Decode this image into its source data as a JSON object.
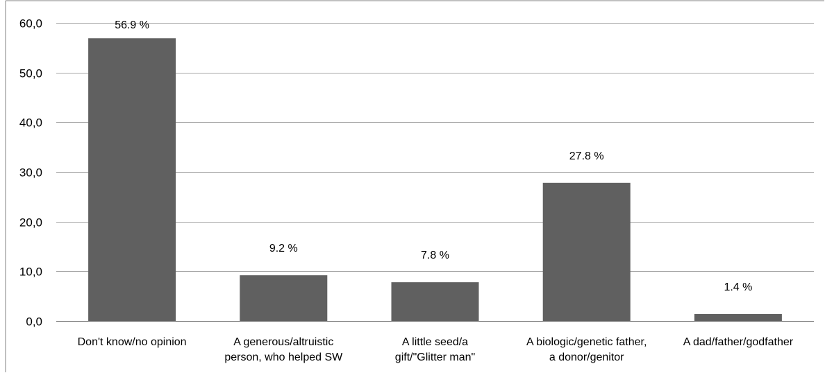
{
  "chart_data": {
    "type": "bar",
    "title": "",
    "xlabel": "",
    "ylabel": "",
    "ylim": [
      0,
      60
    ],
    "yticks": [
      "0,0",
      "10,0",
      "20,0",
      "30,0",
      "40,0",
      "50,0",
      "60,0"
    ],
    "grid": true,
    "categories": [
      [
        "Don't know/no opinion"
      ],
      [
        "A generous/altruistic",
        "person, who helped SW"
      ],
      [
        "A little seed/a",
        "gift/\"Glitter man\""
      ],
      [
        "A biologic/genetic father,",
        "a donor/genitor"
      ],
      [
        "A dad/father/godfather"
      ]
    ],
    "values": [
      56.9,
      9.2,
      7.8,
      27.8,
      1.4
    ],
    "data_labels": [
      "56.9 %",
      "9.2 %",
      "7.8 %",
      "27.8 %",
      "1.4 %"
    ],
    "colors": {
      "bar": "#606060",
      "grid": "#a6a6a6",
      "axis": "#808080",
      "frame": "#808080"
    }
  }
}
